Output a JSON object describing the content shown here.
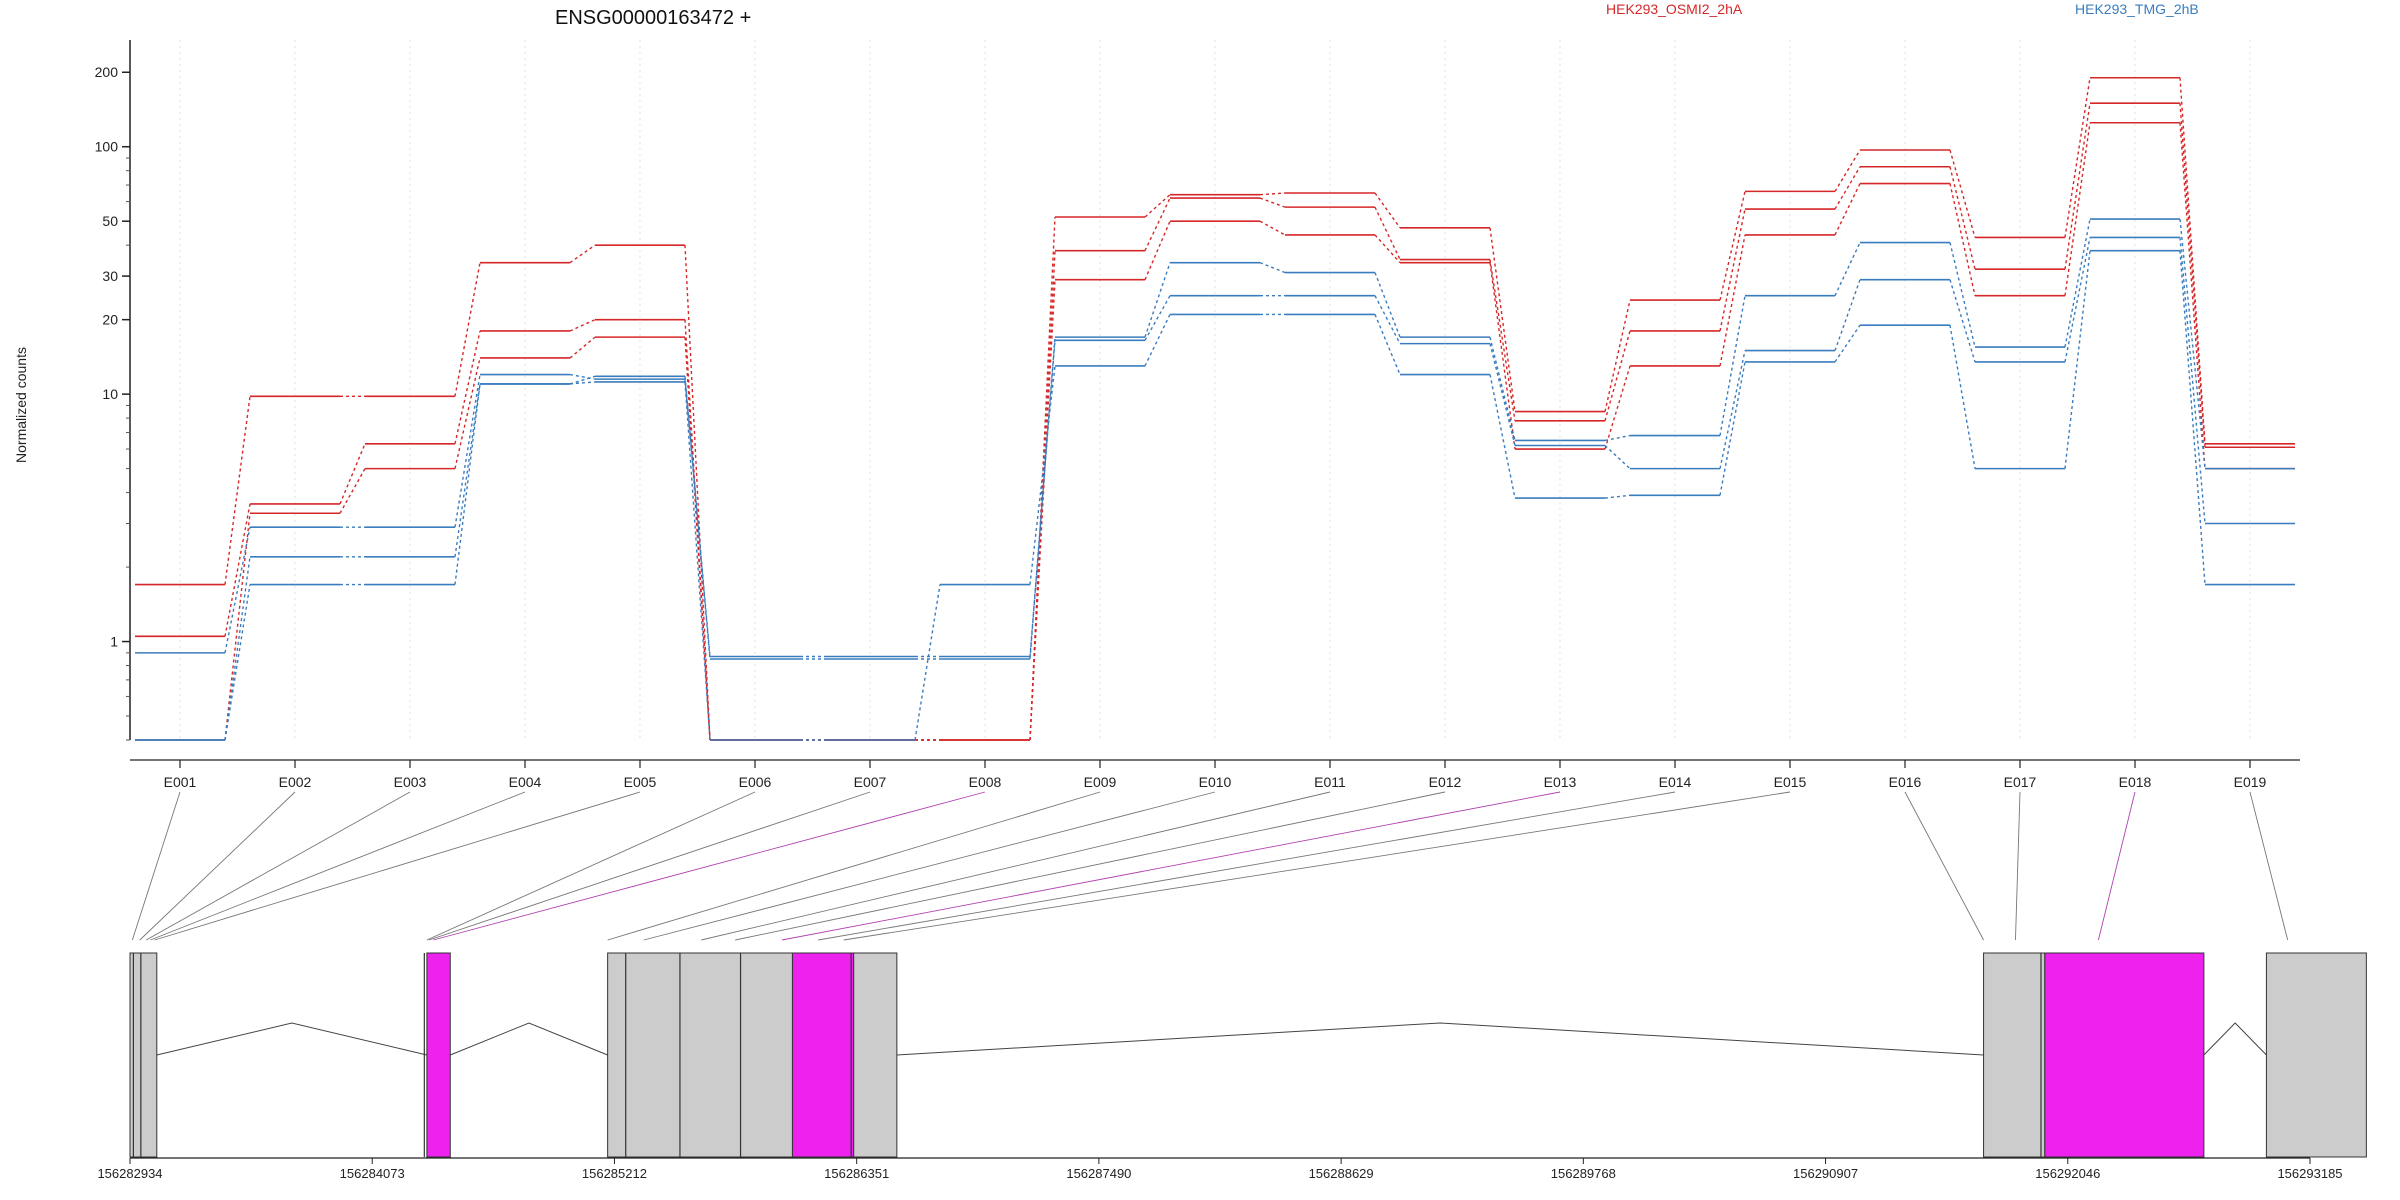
{
  "chart_data": {
    "type": "line",
    "title": "ENSG00000163472 +",
    "ylabel": "Normalized counts",
    "yscale": "log",
    "ylim": [
      0.4,
      270
    ],
    "y_ticks": [
      1,
      10,
      20,
      30,
      50,
      100,
      200
    ],
    "grid": "vertical dotted lines at each exon",
    "legend_position": "top",
    "legend": [
      {
        "name": "HEK293_OSMI2_2hA",
        "color": "#d62728"
      },
      {
        "name": "HEK293_TMG_2hB",
        "color": "#3a7dbe"
      }
    ],
    "categories": [
      "E001",
      "E002",
      "E003",
      "E004",
      "E005",
      "E006",
      "E007",
      "E008",
      "E009",
      "E010",
      "E011",
      "E012",
      "E013",
      "E014",
      "E015",
      "E016",
      "E017",
      "E018",
      "E019"
    ],
    "series": [
      {
        "group": "HEK293_OSMI2_2hA",
        "color": "#d62728",
        "values": [
          1.7,
          9.8,
          9.8,
          34,
          40,
          0.4,
          0.4,
          0.4,
          52,
          64,
          65,
          47,
          8.5,
          24,
          66,
          97,
          43,
          190,
          6.3
        ]
      },
      {
        "group": "HEK293_OSMI2_2hA",
        "color": "#d62728",
        "values": [
          1.05,
          3.6,
          6.3,
          18,
          20,
          0.4,
          0.4,
          0.4,
          38,
          62,
          57,
          35,
          7.8,
          18,
          56,
          83,
          32,
          150,
          6.1
        ]
      },
      {
        "group": "HEK293_OSMI2_2hA",
        "color": "#d62728",
        "values": [
          0.4,
          3.3,
          5.0,
          14,
          17,
          0.4,
          0.4,
          0.4,
          29,
          50,
          44,
          34,
          6.0,
          13,
          44,
          71,
          25,
          125,
          5.0
        ]
      },
      {
        "group": "HEK293_TMG_2hB",
        "color": "#3a7dbe",
        "values": [
          0.9,
          2.9,
          2.9,
          12,
          11.5,
          0.85,
          0.85,
          0.85,
          17,
          34,
          31,
          17,
          6.5,
          6.8,
          25,
          41,
          15.5,
          51,
          5.0
        ]
      },
      {
        "group": "HEK293_TMG_2hB",
        "color": "#3a7dbe",
        "values": [
          0.4,
          2.2,
          2.2,
          11,
          11.8,
          0.87,
          0.87,
          0.87,
          16.5,
          25,
          25,
          16,
          6.2,
          5.0,
          15,
          29,
          13.5,
          43,
          3.0
        ]
      },
      {
        "group": "HEK293_TMG_2hB",
        "color": "#3a7dbe",
        "values": [
          0.4,
          1.7,
          1.7,
          11,
          11.2,
          0.4,
          0.4,
          1.7,
          13,
          21,
          21,
          12,
          3.8,
          3.9,
          13.5,
          19,
          5.0,
          38,
          1.7
        ]
      }
    ],
    "highlighted_exons": [
      "E008",
      "E013",
      "E018"
    ],
    "genomic_axis": {
      "tick_labels": [
        "156282934",
        "156284073",
        "156285212",
        "156286351",
        "156287490",
        "156288629",
        "156289768",
        "156290907",
        "156292046",
        "156293185"
      ],
      "range": [
        156282934,
        156293185
      ]
    },
    "gene_model": {
      "exons": [
        {
          "start": 156282934,
          "end": 156283060,
          "color": "#cccccc"
        },
        {
          "start": 156284330,
          "end": 156284440,
          "color": "#ee22ee"
        },
        {
          "start": 156285180,
          "end": 156286049,
          "color": "#cccccc"
        },
        {
          "start": 156286049,
          "end": 156286337,
          "color": "#ee22ee"
        },
        {
          "start": 156286337,
          "end": 156286540,
          "color": "#cccccc"
        },
        {
          "start": 156291650,
          "end": 156291938,
          "color": "#cccccc"
        },
        {
          "start": 156291938,
          "end": 156292686,
          "color": "#ee22ee"
        },
        {
          "start": 156292980,
          "end": 156293450,
          "color": "#cccccc"
        }
      ],
      "exon_dividers": [
        156282950,
        156282985,
        156284318,
        156285265,
        156285520,
        156285805,
        156286325,
        156291920
      ],
      "exon_bin_positions": [
        156282945,
        156282980,
        156283010,
        156283030,
        156283050,
        156284330,
        156284340,
        156284360,
        156285180,
        156285350,
        156285620,
        156285780,
        156286000,
        156286170,
        156286290,
        156291650,
        156291800,
        156292190,
        156293080
      ]
    }
  }
}
